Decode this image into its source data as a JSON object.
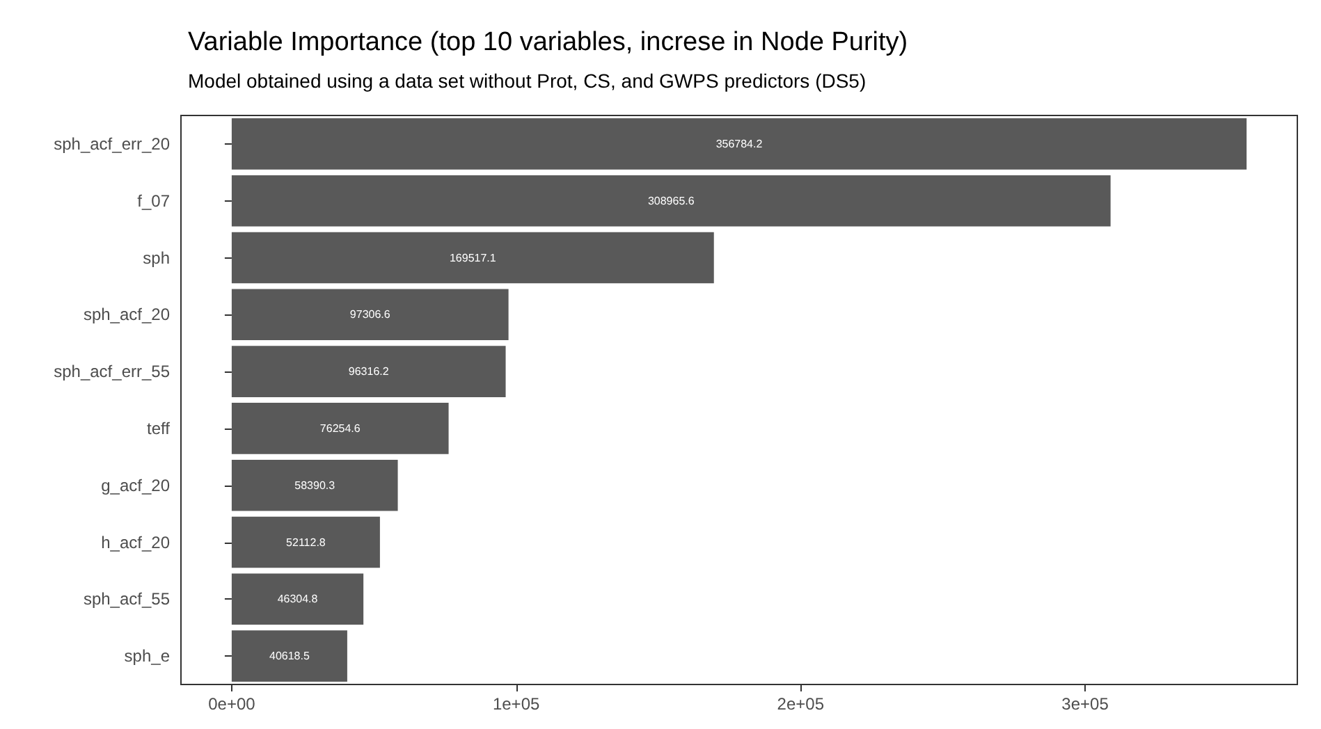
{
  "chart_data": {
    "type": "bar",
    "orientation": "horizontal",
    "title": "Variable Importance (top 10 variables, increse in Node Purity)",
    "subtitle": "Model obtained using a data set without Prot, CS, and GWPS predictors (DS5)",
    "categories": [
      "sph_acf_err_20",
      "f_07",
      "sph",
      "sph_acf_20",
      "sph_acf_err_55",
      "teff",
      "g_acf_20",
      "h_acf_20",
      "sph_acf_55",
      "sph_e"
    ],
    "values": [
      356784.2,
      308965.6,
      169517.1,
      97306.6,
      96316.2,
      76254.6,
      58390.3,
      52112.8,
      46304.8,
      40618.5
    ],
    "color": "#595959",
    "data_labels": true,
    "grid": false,
    "xlim": [
      -17839.2,
      374623.4
    ],
    "xticks": [
      {
        "value": 0,
        "label": "0e+00"
      },
      {
        "value": 100000,
        "label": "1e+05"
      },
      {
        "value": 200000,
        "label": "2e+05"
      },
      {
        "value": 300000,
        "label": "3e+05"
      }
    ]
  }
}
